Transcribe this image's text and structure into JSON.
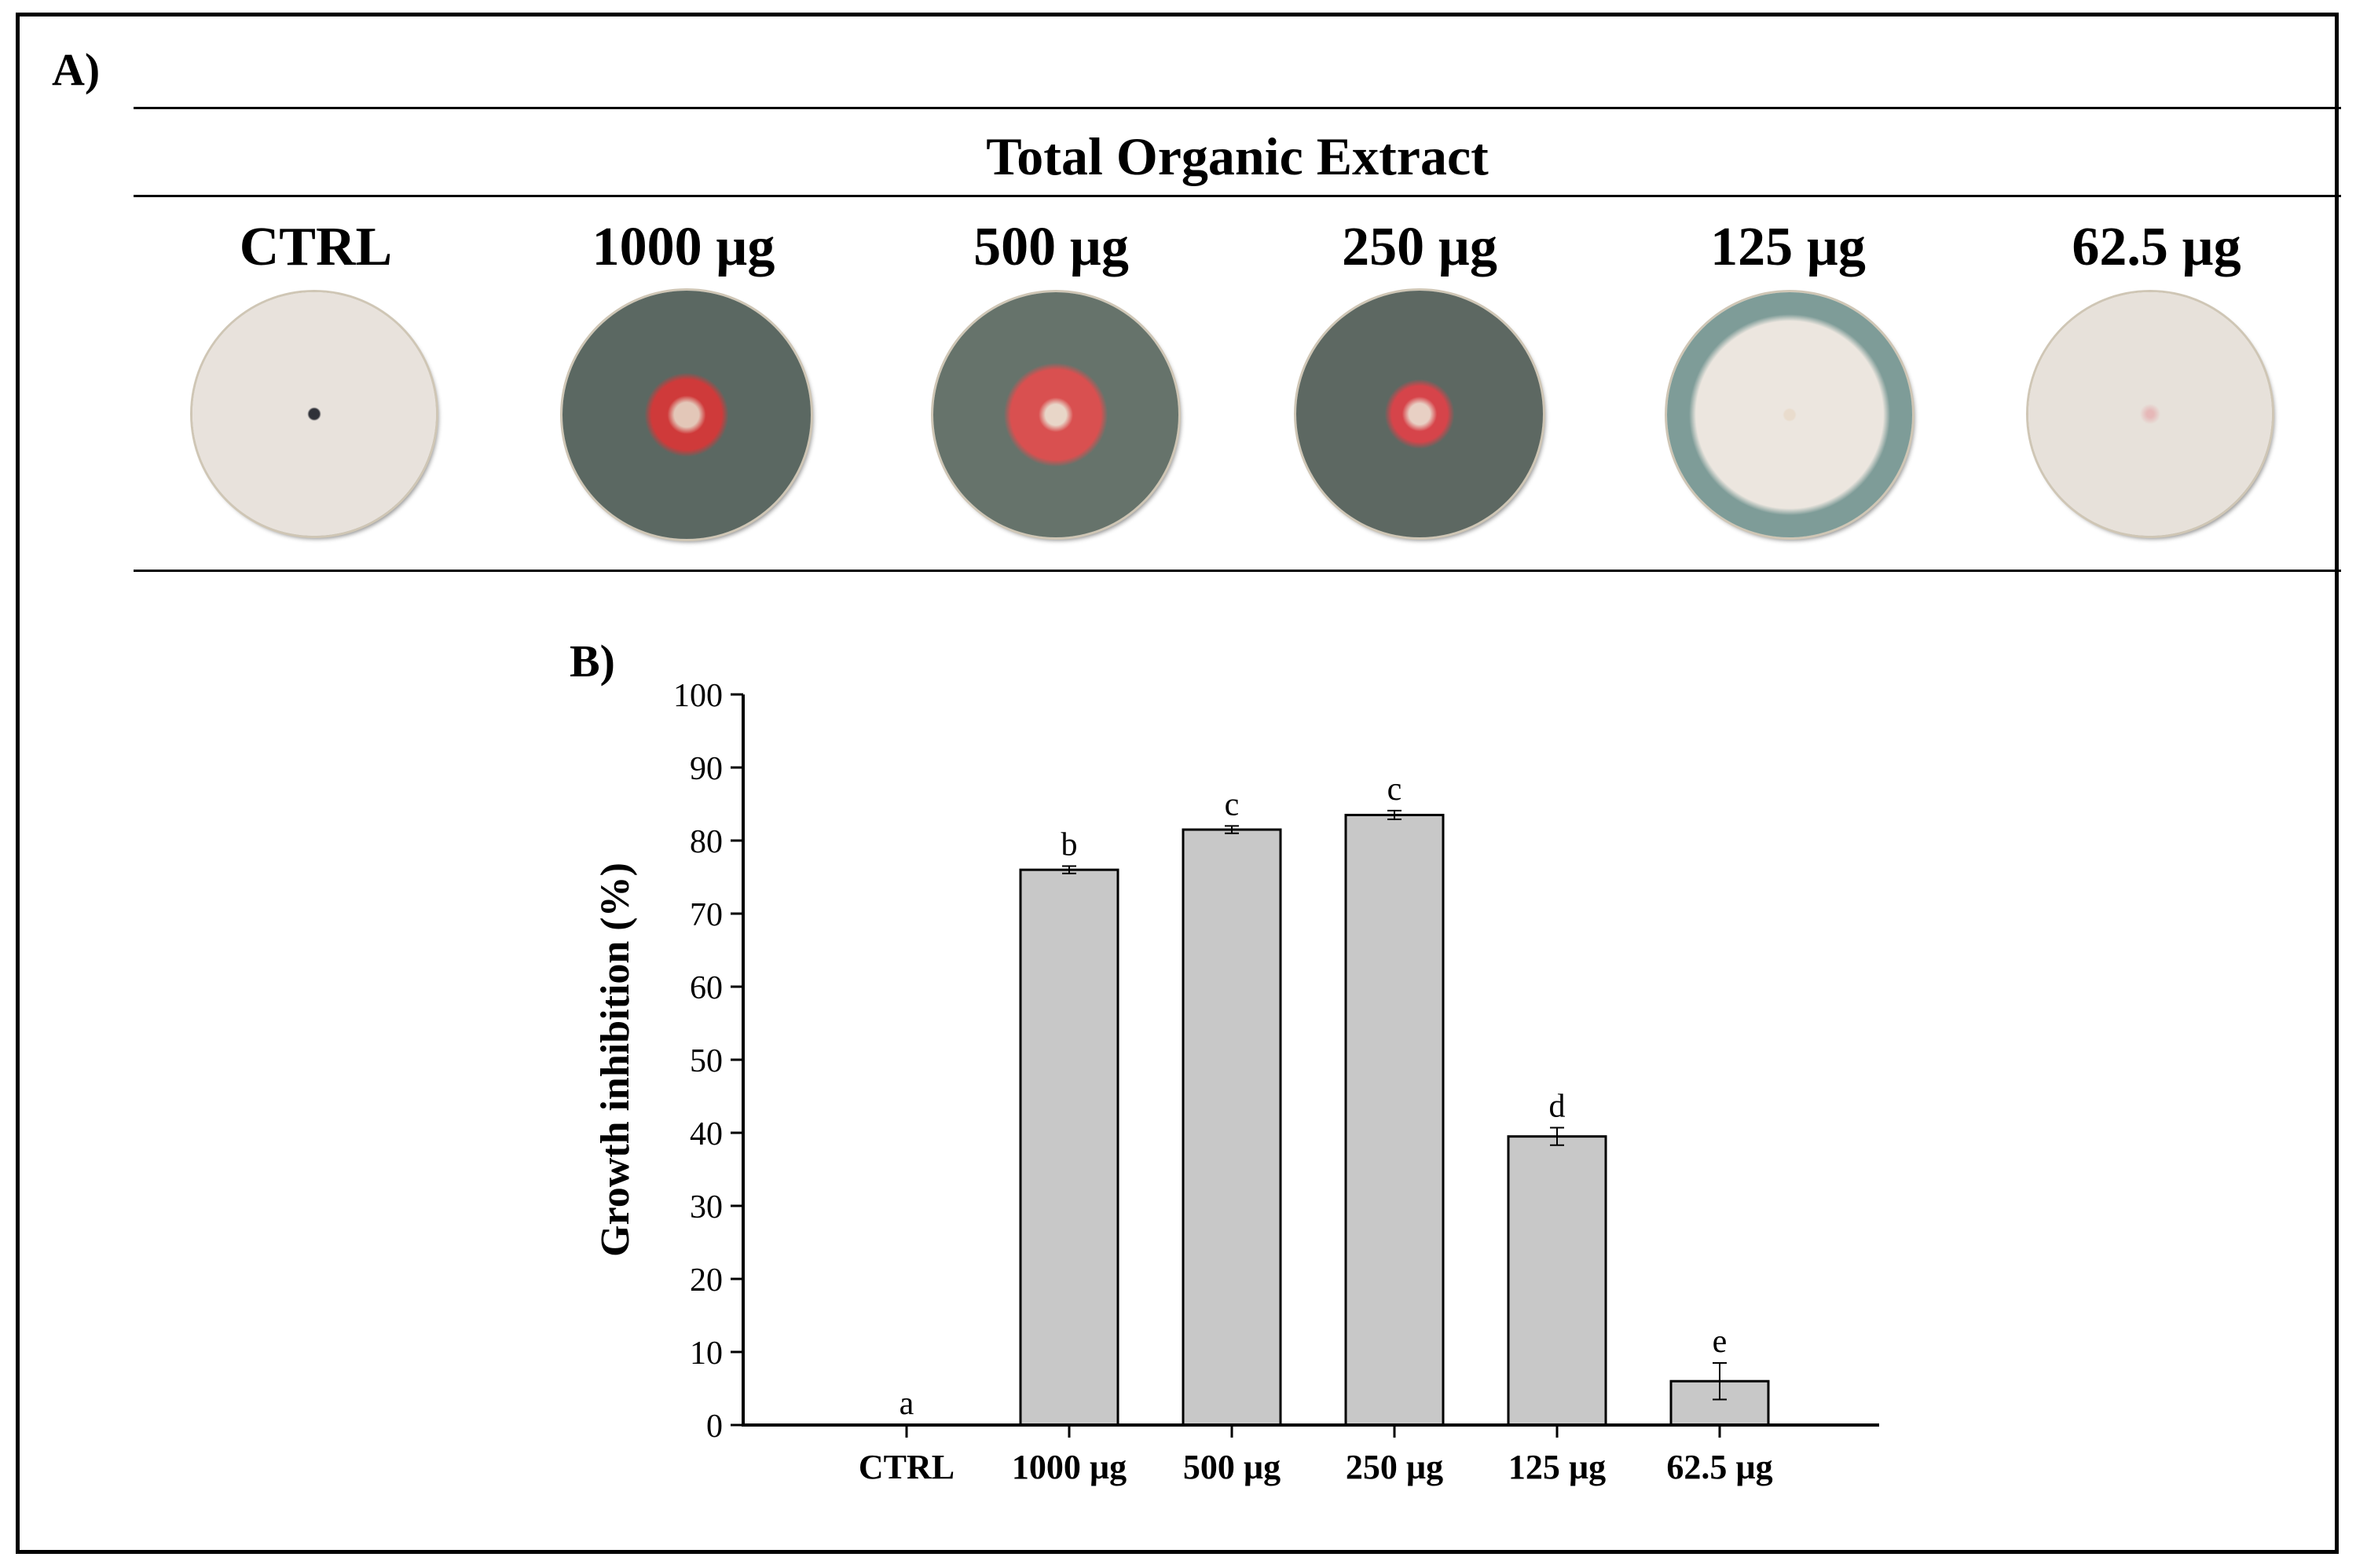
{
  "panel_a": {
    "label": "A)",
    "title": "Total Organic Extract",
    "plates": [
      {
        "label": "CTRL",
        "medium": "#e4ddd6",
        "colony": "#e8e2dc",
        "growth": 1.0,
        "center": "#2f3138",
        "spot": 0.0
      },
      {
        "label": "1000 µg",
        "medium": "#5b6862",
        "colony": "#cf3a3a",
        "growth": 0.24,
        "center": "#e3c7b8",
        "spot": 1.0
      },
      {
        "label": "500 µg",
        "medium": "#66736b",
        "colony": "#d95050",
        "growth": 0.3,
        "center": "#e8d6c8",
        "spot": 0.85
      },
      {
        "label": "250 µg",
        "medium": "#5d6862",
        "colony": "#d6444a",
        "growth": 0.2,
        "center": "#e8d0c4",
        "spot": 0.8
      },
      {
        "label": "125 µg",
        "medium": "#7e9c98",
        "colony": "#ece6df",
        "growth": 0.58,
        "center": "#e9dccd",
        "spot": 0.0
      },
      {
        "label": "62.5 µg",
        "medium": "#dbd6cf",
        "colony": "#e7e1da",
        "growth": 0.96,
        "center": "#e6b8b8",
        "spot": 0.3
      }
    ]
  },
  "panel_b": {
    "label": "B)"
  },
  "chart_data": {
    "type": "bar",
    "categories": [
      "CTRL",
      "1000 µg",
      "500 µg",
      "250 µg",
      "125 µg",
      "62.5 µg"
    ],
    "values": [
      0,
      76,
      81.5,
      83.5,
      39.5,
      6
    ],
    "errors": [
      0,
      0.5,
      0.5,
      0.6,
      1.2,
      2.5
    ],
    "significance_letters": [
      "a",
      "b",
      "c",
      "c",
      "d",
      "e"
    ],
    "xlabel": "",
    "ylabel": "Growth inhibition (%)",
    "ylim": [
      0,
      100
    ],
    "yticks": [
      0,
      10,
      20,
      30,
      40,
      50,
      60,
      70,
      80,
      90,
      100
    ],
    "bar_color": "#c8c8c8",
    "grid": false,
    "legend": "none"
  }
}
